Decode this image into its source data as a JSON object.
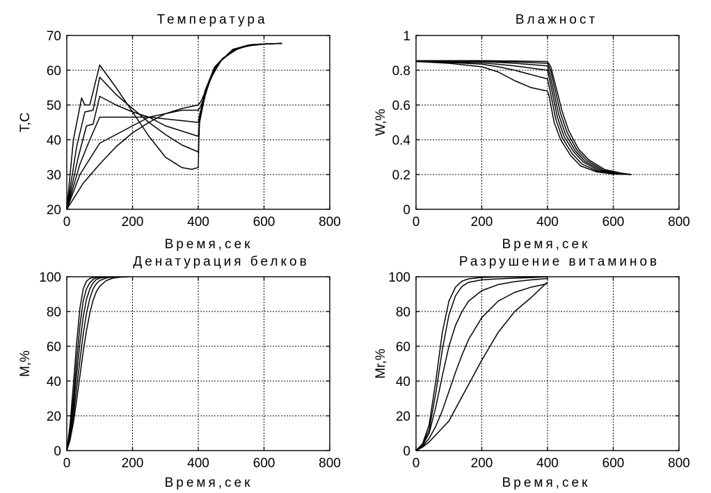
{
  "chart_data": [
    {
      "type": "line",
      "title": "Температура",
      "xlabel": "Время,сек",
      "ylabel": "T,C",
      "xlim": [
        0,
        800
      ],
      "ylim": [
        20,
        70
      ],
      "xticks": [
        0,
        200,
        400,
        600,
        800
      ],
      "yticks": [
        20,
        30,
        40,
        50,
        60,
        70
      ],
      "xtick_labels": [
        "0",
        "200",
        "400",
        "600",
        "800"
      ],
      "ytick_labels": [
        "20",
        "30",
        "40",
        "50",
        "60",
        "70"
      ],
      "grid": true,
      "series": [
        {
          "x": [
            0,
            20,
            45,
            55,
            70,
            100,
            150,
            200,
            250,
            300,
            350,
            380,
            400,
            403,
            420,
            450,
            500,
            550,
            600,
            650
          ],
          "y": [
            20,
            40,
            52,
            50,
            50,
            61.5,
            55,
            48,
            41,
            35,
            32,
            31.5,
            32,
            45,
            54,
            61,
            65.5,
            67,
            67.5,
            67.7
          ]
        },
        {
          "x": [
            0,
            30,
            55,
            80,
            100,
            150,
            200,
            250,
            300,
            350,
            400,
            404,
            425,
            455,
            505,
            555,
            605,
            655
          ],
          "y": [
            20,
            38,
            48,
            48.5,
            58,
            53,
            49,
            45,
            41.5,
            38.5,
            36.5,
            45,
            55,
            61.5,
            66,
            67.3,
            67.6,
            67.7
          ]
        },
        {
          "x": [
            0,
            35,
            60,
            80,
            100,
            150,
            200,
            250,
            300,
            350,
            400,
            405,
            430,
            460,
            510,
            560,
            610,
            655
          ],
          "y": [
            20,
            35,
            44,
            44.5,
            52.5,
            50,
            48,
            46.5,
            44,
            42.5,
            41,
            46.5,
            56,
            62,
            66,
            67.3,
            67.6,
            67.7
          ]
        },
        {
          "x": [
            0,
            40,
            70,
            100,
            150,
            200,
            250,
            300,
            350,
            400,
            406,
            435,
            465,
            515,
            565,
            615,
            655
          ],
          "y": [
            20,
            33,
            40,
            46.5,
            46.5,
            46.5,
            46.5,
            46,
            45.5,
            45,
            48,
            57,
            62.5,
            66.2,
            67.4,
            67.6,
            67.7
          ]
        },
        {
          "x": [
            0,
            40,
            70,
            100,
            150,
            200,
            250,
            300,
            350,
            400,
            407,
            440,
            470,
            520,
            570,
            620,
            655
          ],
          "y": [
            20,
            30,
            34.5,
            39,
            41.5,
            44,
            46.5,
            47.5,
            48.5,
            48.5,
            49.5,
            58,
            63,
            66.3,
            67.4,
            67.6,
            67.7
          ]
        },
        {
          "x": [
            0,
            50,
            100,
            150,
            200,
            250,
            300,
            350,
            400,
            408,
            445,
            475,
            525,
            575,
            625,
            655
          ],
          "y": [
            20,
            27.5,
            33,
            38,
            42,
            45,
            47.5,
            49,
            50,
            51,
            59,
            63.5,
            66.4,
            67.4,
            67.6,
            67.7
          ]
        }
      ]
    },
    {
      "type": "line",
      "title": "Влажност",
      "xlabel": "Время,сек",
      "ylabel": "W,%",
      "xlim": [
        0,
        800
      ],
      "ylim": [
        0,
        1
      ],
      "xticks": [
        0,
        200,
        400,
        600,
        800
      ],
      "yticks": [
        0,
        0.2,
        0.4,
        0.6,
        0.8,
        1
      ],
      "xtick_labels": [
        "0",
        "200",
        "400",
        "600",
        "800"
      ],
      "ytick_labels": [
        "0",
        "0.2",
        "0.4",
        "0.6",
        "0.8",
        "1"
      ],
      "grid": true,
      "series": [
        {
          "x": [
            0,
            100,
            200,
            250,
            300,
            350,
            400,
            405,
            420,
            440,
            470,
            500,
            550,
            600,
            655
          ],
          "y": [
            0.85,
            0.84,
            0.82,
            0.79,
            0.74,
            0.7,
            0.68,
            0.65,
            0.5,
            0.4,
            0.31,
            0.25,
            0.215,
            0.203,
            0.2
          ]
        },
        {
          "x": [
            0,
            100,
            200,
            250,
            300,
            350,
            400,
            406,
            425,
            445,
            475,
            505,
            555,
            605,
            655
          ],
          "y": [
            0.85,
            0.845,
            0.835,
            0.82,
            0.8,
            0.775,
            0.75,
            0.7,
            0.52,
            0.41,
            0.32,
            0.26,
            0.217,
            0.204,
            0.2
          ]
        },
        {
          "x": [
            0,
            100,
            200,
            300,
            400,
            407,
            430,
            450,
            480,
            510,
            560,
            610,
            655
          ],
          "y": [
            0.85,
            0.848,
            0.843,
            0.825,
            0.8,
            0.74,
            0.53,
            0.42,
            0.33,
            0.27,
            0.219,
            0.205,
            0.2
          ]
        },
        {
          "x": [
            0,
            100,
            200,
            300,
            400,
            408,
            435,
            455,
            485,
            515,
            565,
            615,
            655
          ],
          "y": [
            0.855,
            0.853,
            0.85,
            0.84,
            0.825,
            0.77,
            0.54,
            0.43,
            0.335,
            0.275,
            0.222,
            0.206,
            0.2
          ]
        },
        {
          "x": [
            0,
            100,
            200,
            300,
            400,
            409,
            440,
            460,
            490,
            520,
            570,
            620,
            655
          ],
          "y": [
            0.855,
            0.855,
            0.853,
            0.848,
            0.84,
            0.8,
            0.55,
            0.44,
            0.34,
            0.28,
            0.225,
            0.207,
            0.2
          ]
        },
        {
          "x": [
            0,
            100,
            200,
            300,
            400,
            410,
            445,
            465,
            495,
            525,
            575,
            625,
            655
          ],
          "y": [
            0.855,
            0.855,
            0.855,
            0.853,
            0.85,
            0.82,
            0.56,
            0.45,
            0.345,
            0.285,
            0.228,
            0.208,
            0.2
          ]
        }
      ]
    },
    {
      "type": "line",
      "title": "Денатурация белков",
      "xlabel": "Время,сек",
      "ylabel": "M,%",
      "xlim": [
        0,
        800
      ],
      "ylim": [
        0,
        100
      ],
      "xticks": [
        0,
        200,
        400,
        600,
        800
      ],
      "yticks": [
        0,
        20,
        40,
        60,
        80,
        100
      ],
      "xtick_labels": [
        "0",
        "200",
        "400",
        "600",
        "800"
      ],
      "ytick_labels": [
        "0",
        "20",
        "40",
        "60",
        "80",
        "100"
      ],
      "grid": true,
      "series": [
        {
          "x": [
            0,
            10,
            20,
            30,
            40,
            50,
            60,
            70,
            80,
            100
          ],
          "y": [
            0,
            15,
            38,
            62,
            82,
            93,
            97.5,
            99,
            99.6,
            100
          ]
        },
        {
          "x": [
            0,
            10,
            20,
            30,
            40,
            50,
            60,
            70,
            80,
            90,
            100,
            120
          ],
          "y": [
            0,
            12,
            30,
            52,
            72,
            86,
            93,
            96.5,
            98.5,
            99.4,
            99.8,
            100
          ]
        },
        {
          "x": [
            0,
            10,
            20,
            30,
            40,
            50,
            60,
            70,
            80,
            90,
            100,
            120,
            140
          ],
          "y": [
            0,
            10,
            25,
            44,
            62,
            77,
            87,
            93,
            96.5,
            98.4,
            99.2,
            99.8,
            100
          ]
        },
        {
          "x": [
            0,
            10,
            20,
            30,
            40,
            50,
            60,
            70,
            80,
            90,
            100,
            120,
            140,
            160
          ],
          "y": [
            0,
            8,
            20,
            36,
            52,
            67,
            79,
            87.5,
            93,
            96,
            97.8,
            99.3,
            99.8,
            100
          ]
        },
        {
          "x": [
            0,
            10,
            20,
            30,
            40,
            50,
            60,
            70,
            80,
            90,
            100,
            120,
            140,
            160,
            180,
            190
          ],
          "y": [
            0,
            6,
            16,
            29,
            43,
            57,
            69,
            79,
            86.5,
            91.5,
            94.5,
            97.8,
            99.2,
            99.7,
            99.9,
            100
          ]
        }
      ]
    },
    {
      "type": "line",
      "title": "Разрушение витаминов",
      "xlabel": "Время,сек",
      "ylabel": "Mr,%",
      "xlim": [
        0,
        800
      ],
      "ylim": [
        0,
        100
      ],
      "xticks": [
        0,
        200,
        400,
        600,
        800
      ],
      "yticks": [
        0,
        20,
        40,
        60,
        80,
        100
      ],
      "xtick_labels": [
        "0",
        "200",
        "400",
        "600",
        "800"
      ],
      "ytick_labels": [
        "0",
        "20",
        "40",
        "60",
        "80",
        "100"
      ],
      "grid": true,
      "series": [
        {
          "x": [
            0,
            20,
            40,
            60,
            80,
            100,
            120,
            140,
            160,
            200,
            250,
            300,
            350,
            400
          ],
          "y": [
            0,
            4,
            15,
            40,
            68,
            86,
            94,
            97.5,
            98.8,
            99.6,
            99.9,
            100,
            100,
            100
          ]
        },
        {
          "x": [
            0,
            20,
            40,
            60,
            80,
            100,
            120,
            140,
            160,
            200,
            250,
            300,
            350,
            400
          ],
          "y": [
            0,
            3.5,
            12,
            33,
            58,
            78,
            89,
            94.5,
            96.8,
            98.2,
            98.8,
            99.2,
            99.5,
            100
          ]
        },
        {
          "x": [
            0,
            20,
            40,
            60,
            80,
            100,
            120,
            140,
            160,
            200,
            250,
            300,
            350,
            400
          ],
          "y": [
            0,
            3,
            10,
            25,
            43,
            60,
            72,
            80,
            86,
            92,
            95.5,
            97.2,
            98.2,
            99
          ]
        },
        {
          "x": [
            0,
            20,
            40,
            60,
            80,
            100,
            120,
            140,
            160,
            200,
            250,
            300,
            350,
            400
          ],
          "y": [
            0,
            2.5,
            7,
            14,
            23,
            34,
            45,
            55,
            64,
            76.5,
            86,
            91,
            94,
            96
          ]
        },
        {
          "x": [
            0,
            20,
            40,
            60,
            80,
            100,
            120,
            140,
            160,
            200,
            250,
            300,
            350,
            400
          ],
          "y": [
            0,
            2,
            5,
            9,
            13,
            17,
            24,
            31,
            38,
            52,
            68,
            80,
            88,
            97
          ]
        }
      ]
    }
  ]
}
